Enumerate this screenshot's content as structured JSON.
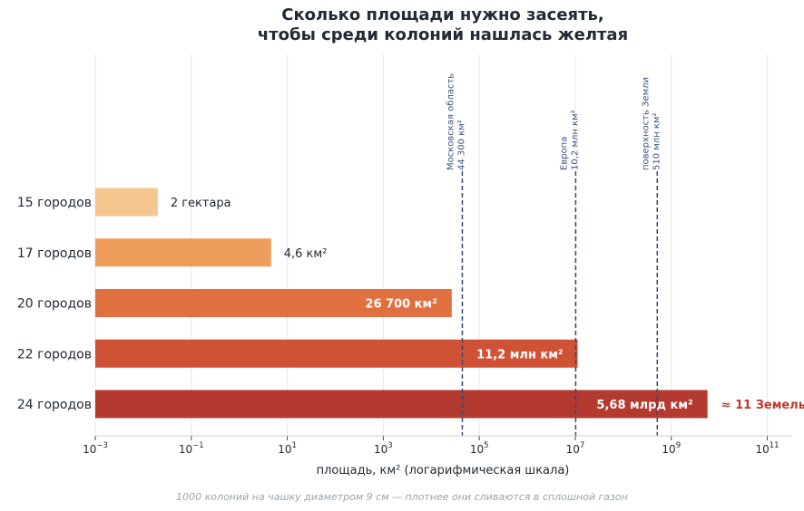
{
  "chart_data": {
    "type": "bar",
    "orientation": "horizontal",
    "title_line1": "Сколько площади нужно засеять,",
    "title_line2": "чтобы среди колоний нашлась желтая",
    "xlabel": "площадь, км² (логарифмическая шкала)",
    "footnote": "1000 колоний на чашку диаметром 9 см — плотнее они сливаются в сплошной газон",
    "x_scale": "log",
    "xlim": [
      0.001,
      316227766017
    ],
    "x_tick_base": "10",
    "x_ticks": [
      "−3",
      "−1",
      "1",
      "3",
      "5",
      "7",
      "9",
      "11"
    ],
    "grid": true,
    "categories": [
      "15 городов",
      "17 городов",
      "20 городов",
      "22 городов",
      "24 городов"
    ],
    "values": [
      0.02,
      4.6,
      26700,
      11200000,
      5680000000
    ],
    "value_labels": [
      "2 гектара",
      "4,6 км²",
      "26 700 км²",
      "11,2 млн км²",
      "5,68 млрд км²"
    ],
    "extra_label": "≈ 11 Земель",
    "colors": [
      "#f5c68e",
      "#ef9d5a",
      "#e07040",
      "#cf5236",
      "#b4392f"
    ],
    "reference_lines": [
      {
        "value": 44300,
        "line1": "Московская область",
        "line2": "44 300 км²"
      },
      {
        "value": 10200000,
        "line1": "Европа",
        "line2": "10,2 млн км²"
      },
      {
        "value": 510000000,
        "line1": "поверхность Земли",
        "line2": "510 млн км²"
      }
    ],
    "reference_color": "#2e4a7a",
    "extra_label_color": "#c0392b"
  }
}
